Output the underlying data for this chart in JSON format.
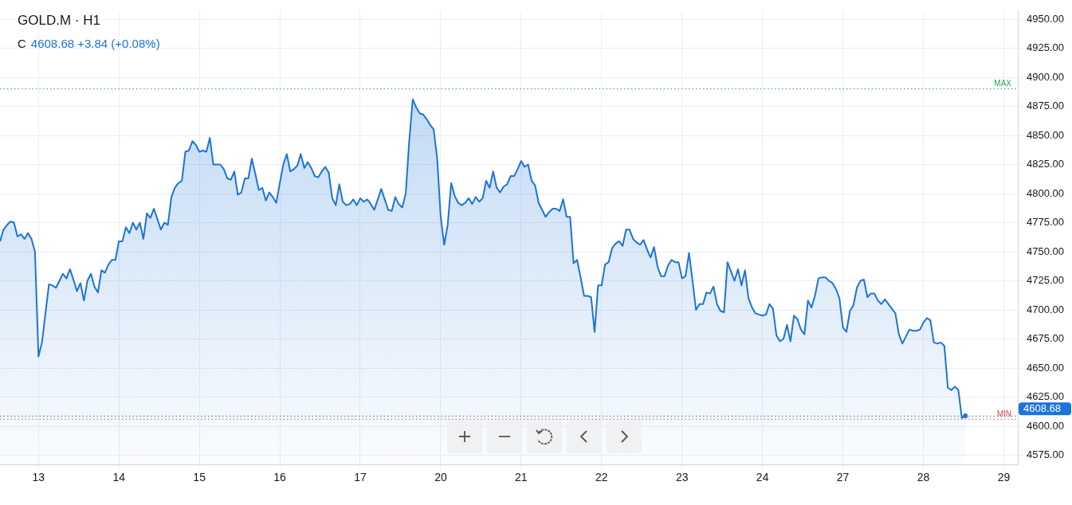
{
  "chart_data": {
    "type": "area",
    "title": "GOLD.M · H1",
    "subtitle": "C 4608.68  +3.84 (+0.08%)",
    "categories": [
      null,
      null,
      null,
      null,
      null,
      null,
      null,
      null,
      null,
      null,
      null,
      "13",
      null,
      null,
      null,
      null,
      null,
      null,
      null,
      null,
      null,
      null,
      null,
      null,
      null,
      null,
      null,
      null,
      null,
      null,
      null,
      null,
      null,
      null,
      "14",
      null,
      null,
      null,
      null,
      null,
      null,
      null,
      null,
      null,
      null,
      null,
      null,
      null,
      null,
      null,
      null,
      null,
      null,
      null,
      null,
      null,
      null,
      "15",
      null,
      null,
      null,
      null,
      null,
      null,
      null,
      null,
      null,
      null,
      null,
      null,
      null,
      null,
      null,
      null,
      null,
      null,
      null,
      null,
      null,
      null,
      "16",
      null,
      null,
      null,
      null,
      null,
      null,
      null,
      null,
      null,
      null,
      null,
      null,
      null,
      null,
      null,
      null,
      null,
      null,
      null,
      null,
      null,
      null,
      "17",
      null,
      null,
      null,
      null,
      null,
      null,
      null,
      null,
      null,
      null,
      null,
      null,
      null,
      null,
      null,
      null,
      null,
      null,
      null,
      null,
      null,
      null,
      "20",
      null,
      null,
      null,
      null,
      null,
      null,
      null,
      null,
      null,
      null,
      null,
      null,
      null,
      null,
      null,
      null,
      null,
      null,
      null,
      null,
      null,
      null,
      "21",
      null,
      null,
      null,
      null,
      null,
      null,
      null,
      null,
      null,
      null,
      null,
      null,
      null,
      null,
      null,
      null,
      null,
      null,
      null,
      null,
      null,
      null,
      "22",
      null,
      null,
      null,
      null,
      null,
      null,
      null,
      null,
      null,
      null,
      null,
      null,
      null,
      null,
      null,
      null,
      null,
      null,
      null,
      null,
      null,
      null,
      "23",
      null,
      null,
      null,
      null,
      null,
      null,
      null,
      null,
      null,
      null,
      null,
      null,
      null,
      null,
      null,
      null,
      null,
      null,
      null,
      null,
      null,
      null,
      "24",
      null,
      null,
      null,
      null,
      null,
      null,
      null,
      null,
      null,
      null,
      null,
      null,
      null,
      null,
      null,
      null,
      null,
      null,
      null,
      null,
      null,
      null,
      "27",
      null,
      null,
      null,
      null,
      null,
      null,
      null,
      null,
      null,
      null,
      null,
      null,
      null,
      null,
      null,
      null,
      null,
      null,
      null,
      null,
      null,
      null,
      "28",
      null,
      null,
      null,
      null,
      null,
      null,
      null,
      null,
      null,
      null,
      null,
      null,
      null,
      null,
      null,
      null,
      null,
      null,
      null,
      null,
      null,
      null,
      "29",
      null,
      null,
      null,
      null
    ],
    "series": [
      {
        "color": "#1c74d8",
        "values": [
          4759,
          4769,
          4773,
          4776,
          4775,
          4763,
          4765,
          4761,
          4766,
          4761,
          4750,
          4660,
          4672,
          4697,
          4722,
          4721,
          4719,
          4725,
          4731,
          4727,
          4735,
          4726,
          4716,
          4723,
          4708,
          4725,
          4731,
          4720,
          4715,
          4734,
          4732,
          4739,
          4743,
          4743,
          4759,
          4759,
          4771,
          4766,
          4775,
          4769,
          4775,
          4761,
          4783,
          4779,
          4787,
          4778,
          4769,
          4775,
          4773,
          4797,
          4805,
          4809,
          4811,
          4836,
          4837,
          4845,
          4842,
          4836,
          4837,
          4836,
          4848,
          4825,
          4825,
          4825,
          4821,
          4813,
          4812,
          4819,
          4799,
          4801,
          4813,
          4813,
          4830,
          4817,
          4803,
          4805,
          4794,
          4801,
          4797,
          4792,
          4809,
          4825,
          4834,
          4819,
          4821,
          4824,
          4834,
          4822,
          4827,
          4822,
          4815,
          4814,
          4819,
          4823,
          4818,
          4796,
          4790,
          4808,
          4793,
          4790,
          4791,
          4795,
          4790,
          4796,
          4793,
          4795,
          4791,
          4786,
          4795,
          4804,
          4795,
          4786,
          4785,
          4797,
          4791,
          4788,
          4800,
          4845,
          4881,
          4874,
          4869,
          4868,
          4864,
          4859,
          4855,
          4830,
          4780,
          4756,
          4773,
          4809,
          4798,
          4792,
          4790,
          4792,
          4796,
          4791,
          4797,
          4793,
          4796,
          4811,
          4805,
          4819,
          4805,
          4801,
          4806,
          4808,
          4815,
          4815,
          4821,
          4828,
          4823,
          4825,
          4811,
          4807,
          4792,
          4786,
          4780,
          4784,
          4787,
          4787,
          4785,
          4795,
          4780,
          4780,
          4740,
          4743,
          4728,
          4712,
          4712,
          4711,
          4681,
          4721,
          4721,
          4739,
          4741,
          4753,
          4757,
          4759,
          4755,
          4769,
          4769,
          4761,
          4758,
          4756,
          4760,
          4752,
          4745,
          4754,
          4737,
          4729,
          4729,
          4738,
          4743,
          4741,
          4741,
          4727,
          4729,
          4749,
          4725,
          4700,
          4705,
          4705,
          4715,
          4714,
          4720,
          4705,
          4699,
          4698,
          4741,
          4733,
          4725,
          4735,
          4721,
          4734,
          4710,
          4702,
          4697,
          4696,
          4695,
          4696,
          4705,
          4701,
          4678,
          4673,
          4675,
          4687,
          4673,
          4695,
          4692,
          4683,
          4679,
          4708,
          4702,
          4712,
          4727,
          4728,
          4728,
          4725,
          4723,
          4718,
          4710,
          4685,
          4681,
          4699,
          4704,
          4719,
          4725,
          4726,
          4711,
          4714,
          4714,
          4708,
          4705,
          4709,
          4705,
          4701,
          4697,
          4679,
          4671,
          4677,
          4683,
          4682,
          4682,
          4683,
          4689,
          4693,
          4691,
          4672,
          4671,
          4672,
          4669,
          4633,
          4631,
          4634,
          4631,
          4607,
          4609,
          null,
          null,
          null,
          null,
          null,
          null,
          null,
          null,
          null,
          null,
          null,
          null,
          null,
          null,
          null
        ]
      }
    ],
    "ylim": [
      4567,
      4957
    ],
    "yticks": [
      {
        "value": 4575,
        "label": "4575.00"
      },
      {
        "value": 4600,
        "label": "4600.00"
      },
      {
        "value": 4625,
        "label": "4625.00"
      },
      {
        "value": 4650,
        "label": "4650.00"
      },
      {
        "value": 4675,
        "label": "4675.00"
      },
      {
        "value": 4700,
        "label": "4700.00"
      },
      {
        "value": 4725,
        "label": "4725.00"
      },
      {
        "value": 4750,
        "label": "4750.00"
      },
      {
        "value": 4775,
        "label": "4775.00"
      },
      {
        "value": 4800,
        "label": "4800.00"
      },
      {
        "value": 4825,
        "label": "4825.00"
      },
      {
        "value": 4850,
        "label": "4850.00"
      },
      {
        "value": 4875,
        "label": "4875.00"
      },
      {
        "value": 4900,
        "label": "4900.00"
      },
      {
        "value": 4925,
        "label": "4925.00"
      },
      {
        "value": 4950,
        "label": "4950.00"
      }
    ],
    "ref_lines": [
      {
        "axis": "y",
        "value": 4890,
        "label": "MAX",
        "color": "#26a65b",
        "line_style": "dotted"
      },
      {
        "axis": "y",
        "value": 4606,
        "label": "MIN",
        "color": "#e5484d",
        "line_style": "dotted"
      },
      {
        "axis": "y",
        "value": 4608.68,
        "label": "4608.68",
        "color": "#1c74d8",
        "line_style": "dotted"
      }
    ],
    "grid": true,
    "legend": false,
    "marker": "none",
    "line_style": "solid"
  }
}
